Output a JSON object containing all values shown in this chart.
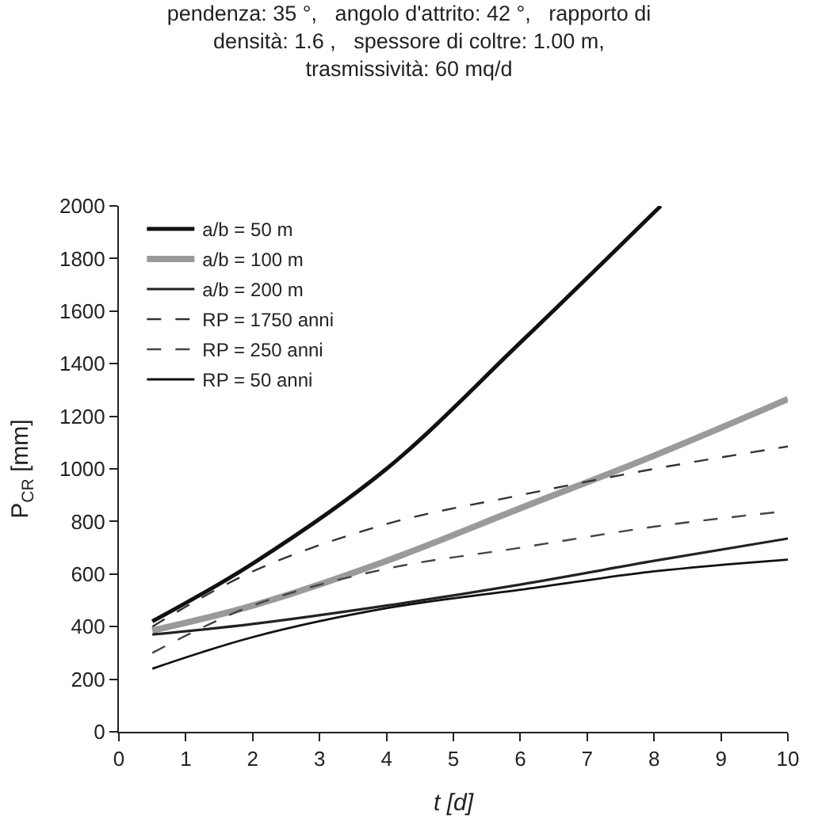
{
  "chart_data": {
    "type": "line",
    "title": "pendenza: 35 °,   angolo d'attrito: 42 °,   rapporto di\ndensità: 1.6 ,   spessore di coltre: 1.00 m,\ntrasmissività: 60 mq/d",
    "xlabel": "t [d]",
    "ylabel": "P$_{CR}$ [mm]",
    "x": [
      0.5,
      2,
      4,
      6,
      8,
      10
    ],
    "series": [
      {
        "name": "a/b = 50 m",
        "color": "#111111",
        "line_style": "solid",
        "x": [
          0.5,
          2,
          4,
          6,
          8.1
        ],
        "values": [
          420,
          640,
          1000,
          1480,
          2000
        ]
      },
      {
        "name": "a/b = 100 m",
        "color": "#9a9a9a",
        "line_style": "solid",
        "values": [
          385,
          480,
          650,
          850,
          1050,
          1265
        ]
      },
      {
        "name": "a/b = 200 m",
        "color": "#222222",
        "line_style": "solid",
        "values": [
          370,
          410,
          480,
          560,
          650,
          735
        ]
      },
      {
        "name": "RP = 1750 anni",
        "color": "#333333",
        "line_style": "dashed",
        "values": [
          400,
          610,
          790,
          900,
          1000,
          1085
        ]
      },
      {
        "name": "RP = 250 anni",
        "color": "#444444",
        "line_style": "dashed",
        "values": [
          300,
          480,
          620,
          700,
          780,
          840
        ]
      },
      {
        "name": "RP = 50 anni",
        "color": "#111111",
        "line_style": "solid",
        "values": [
          240,
          360,
          470,
          540,
          610,
          655
        ]
      }
    ],
    "xlim": [
      0,
      10
    ],
    "xticks": [
      0,
      1,
      2,
      3,
      4,
      5,
      6,
      7,
      8,
      9,
      10
    ],
    "ylim": [
      0,
      2000
    ],
    "yticks": [
      0,
      200,
      400,
      600,
      800,
      1000,
      1200,
      1400,
      1600,
      1800,
      2000
    ],
    "grid": false,
    "legend": "top left",
    "marker": "none"
  }
}
